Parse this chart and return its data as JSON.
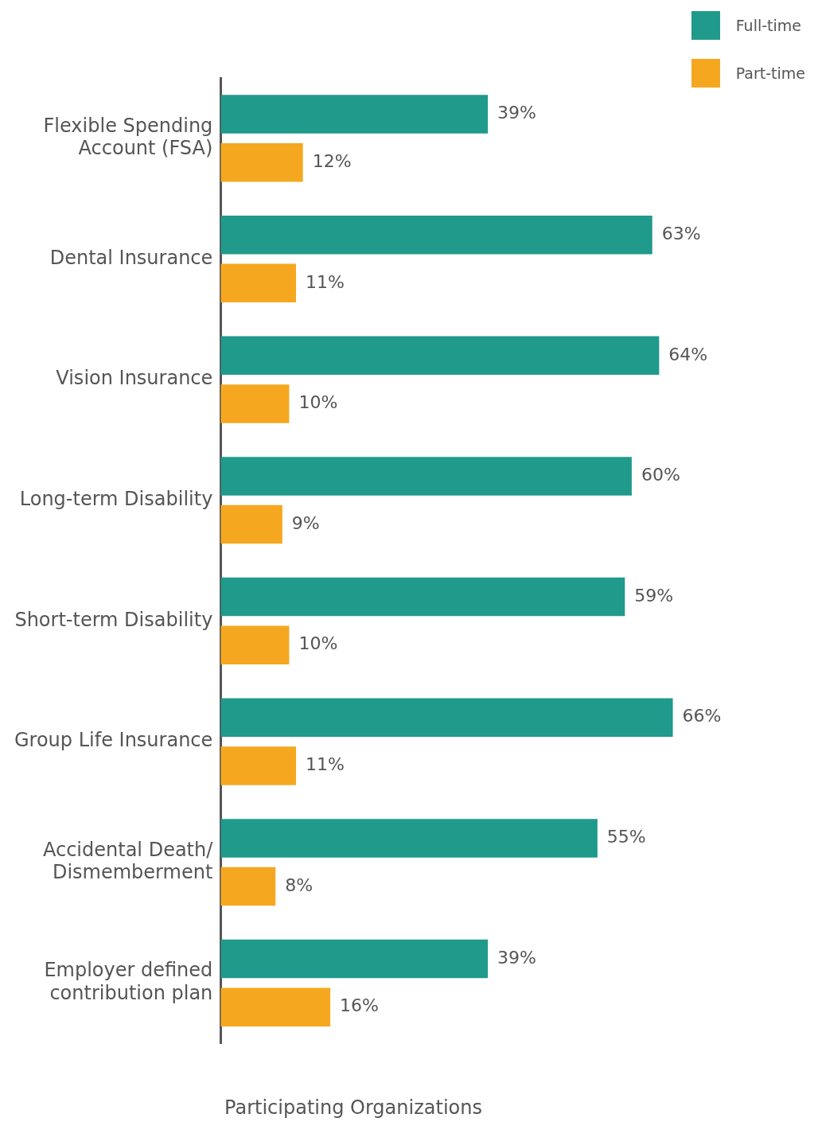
{
  "chart_data": {
    "type": "bar",
    "orientation": "horizontal",
    "relative": false,
    "xlabel": "Participating Organizations",
    "categories": [
      "Flexible Spending Account (FSA)",
      "Dental Insurance",
      "Vision Insurance",
      "Long-term Disability",
      "Short-term Disability",
      "Group Life Insurance",
      "Accidental Death/ Dismemberment",
      "Employer defined contribution plan"
    ],
    "series": [
      {
        "name": "Full-time",
        "color": "#1f9a8b",
        "values": [
          39,
          63,
          64,
          60,
          59,
          66,
          55,
          39
        ],
        "value_labels": [
          "39%",
          "63%",
          "64%",
          "60%",
          "59%",
          "66%",
          "55%",
          "39%"
        ]
      },
      {
        "name": "Part-time",
        "color": "#f5a81f",
        "values": [
          12,
          11,
          10,
          9,
          10,
          11,
          8,
          16
        ],
        "value_labels": [
          "12%",
          "11%",
          "10%",
          "9%",
          "10%",
          "11%",
          "8%",
          "16%"
        ]
      }
    ],
    "grid": false,
    "legend": "top right"
  }
}
